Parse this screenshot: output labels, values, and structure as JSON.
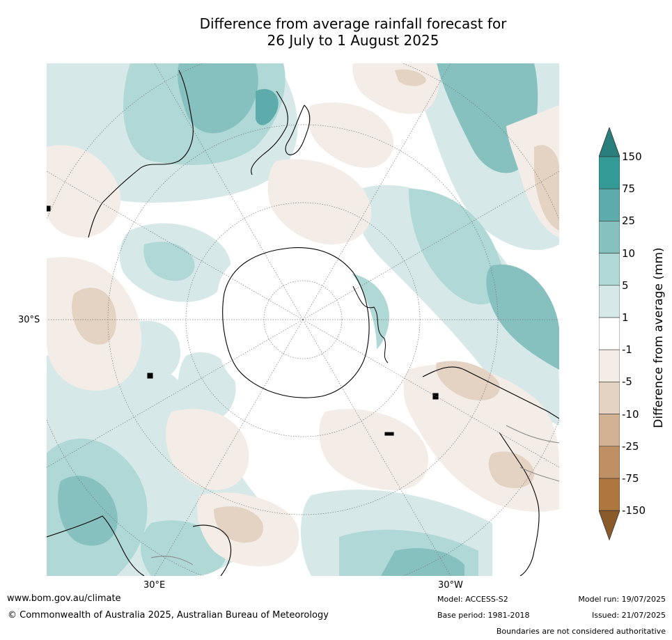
{
  "title_line1": "Difference from average rainfall forecast for",
  "title_line2": "26 July to 1 August 2025",
  "map": {
    "lat_label_left": "30°S",
    "lon_label_left": "30°E",
    "lon_label_right": "30°W"
  },
  "colorbar": {
    "title": "Difference from average (mm)",
    "labels": [
      "150",
      "75",
      "25",
      "10",
      "5",
      "1",
      "-1",
      "-5",
      "-10",
      "-25",
      "-75",
      "-150"
    ],
    "band_colors": [
      "#2a7e7c",
      "#339a96",
      "#5dabab",
      "#86c1c0",
      "#afd8d6",
      "#d6e9e8",
      "#ffffff",
      "#f4ece6",
      "#e4d2c2",
      "#d2b292",
      "#bf9063",
      "#ad773f",
      "#8b5a2b"
    ]
  },
  "footer": {
    "url": "www.bom.gov.au/climate",
    "copyright": "© Commonwealth of Australia 2025, Australian Bureau of Meteorology",
    "model": "Model: ACCESS-S2",
    "base_period": "Base period: 1981-2018",
    "model_run": "Model run: 19/07/2025",
    "issued": "Issued: 21/07/2025",
    "disclaimer": "Boundaries are not considered authoritative"
  }
}
